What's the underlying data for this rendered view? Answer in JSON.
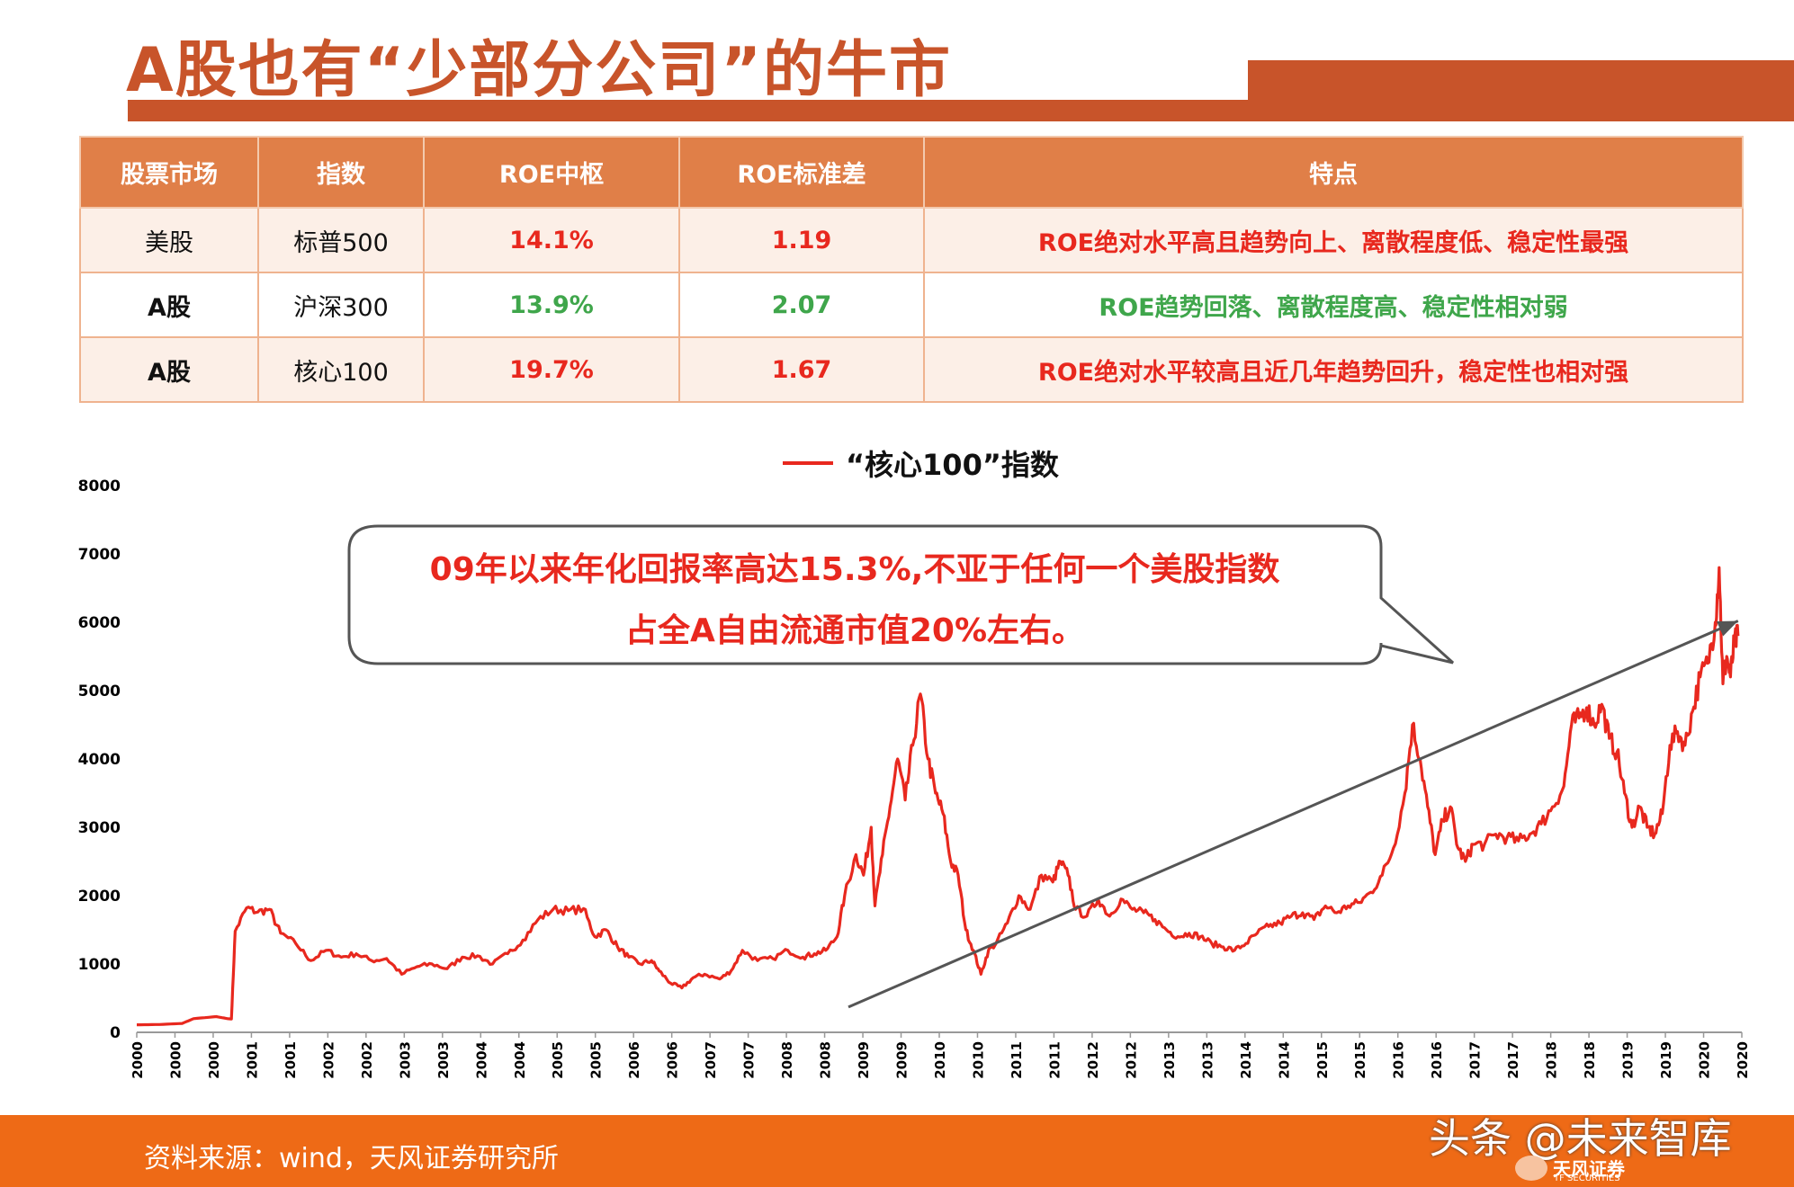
{
  "header": {
    "title": "A股也有“少部分公司”的牛市"
  },
  "table": {
    "headers": [
      "股票市场",
      "指数",
      "ROE中枢",
      "ROE标准差",
      "特点"
    ],
    "rows": [
      {
        "market": "美股",
        "index": "标普500",
        "roe": "14.1%",
        "std": "1.19",
        "feature": "ROE绝对水平高且趋势向上、离散程度低、稳定性最强"
      },
      {
        "market": "A股",
        "index": "沪深300",
        "roe": "13.9%",
        "std": "2.07",
        "feature": "ROE趋势回落、离散程度高、稳定性相对弱"
      },
      {
        "market": "A股",
        "index": "核心100",
        "roe": "19.7%",
        "std": "1.67",
        "feature": "ROE绝对水平较高且近几年趋势回升，稳定性也相对强"
      }
    ]
  },
  "callout": {
    "line1": "09年以来年化回报率高达15.3%,不亚于任何一个美股指数",
    "line2": "占全A自由流通市值20%左右。"
  },
  "footer": {
    "source": "资料来源：wind，天风证券研究所",
    "watermark": "头条 @未来智库",
    "logo_text": "天风证券",
    "logo_sub": "TF SECURITIES"
  },
  "colors": {
    "accent": "#c8542a",
    "header_fill": "#e07f48",
    "series": "#e8281e",
    "green": "#3fa64b",
    "footer": "#ee6a16",
    "trend": "#555555"
  },
  "chart_data": {
    "type": "line",
    "series": [
      {
        "name": "“核心100”指数",
        "color": "#e8281e"
      }
    ],
    "ylim": [
      0,
      8000
    ],
    "yticks": [
      0,
      1000,
      2000,
      3000,
      4000,
      5000,
      6000,
      7000,
      8000
    ],
    "xticks": [
      "2000",
      "2000",
      "2000",
      "2001",
      "2001",
      "2002",
      "2002",
      "2003",
      "2003",
      "2004",
      "2004",
      "2005",
      "2005",
      "2006",
      "2006",
      "2007",
      "2007",
      "2008",
      "2008",
      "2009",
      "2009",
      "2010",
      "2010",
      "2011",
      "2011",
      "2012",
      "2012",
      "2013",
      "2013",
      "2014",
      "2014",
      "2015",
      "2015",
      "2016",
      "2016",
      "2017",
      "2017",
      "2018",
      "2018",
      "2019",
      "2019",
      "2020",
      "2020"
    ],
    "xlim": [
      2000.0,
      2020.3
    ],
    "points": [
      [
        2000.0,
        110
      ],
      [
        2000.3,
        115
      ],
      [
        2000.6,
        130
      ],
      [
        2000.75,
        200
      ],
      [
        2001.05,
        230
      ],
      [
        2001.2,
        200
      ],
      [
        2001.25,
        195
      ],
      [
        2001.3,
        1480
      ],
      [
        2001.45,
        1820
      ],
      [
        2001.6,
        1760
      ],
      [
        2001.75,
        1800
      ],
      [
        2001.9,
        1450
      ],
      [
        2002.1,
        1300
      ],
      [
        2002.3,
        1050
      ],
      [
        2002.5,
        1200
      ],
      [
        2002.7,
        1100
      ],
      [
        2002.9,
        1150
      ],
      [
        2003.1,
        1050
      ],
      [
        2003.3,
        1080
      ],
      [
        2003.5,
        850
      ],
      [
        2003.7,
        960
      ],
      [
        2003.9,
        1000
      ],
      [
        2004.1,
        930
      ],
      [
        2004.3,
        1100
      ],
      [
        2004.5,
        1120
      ],
      [
        2004.7,
        1000
      ],
      [
        2004.9,
        1150
      ],
      [
        2005.1,
        1350
      ],
      [
        2005.3,
        1650
      ],
      [
        2005.5,
        1800
      ],
      [
        2005.7,
        1780
      ],
      [
        2005.9,
        1810
      ],
      [
        2006.05,
        1400
      ],
      [
        2006.2,
        1500
      ],
      [
        2006.35,
        1250
      ],
      [
        2006.5,
        1100
      ],
      [
        2006.65,
        1000
      ],
      [
        2006.8,
        1050
      ],
      [
        2006.9,
        900
      ],
      [
        2007.05,
        720
      ],
      [
        2007.2,
        650
      ],
      [
        2007.35,
        800
      ],
      [
        2007.5,
        850
      ],
      [
        2007.7,
        780
      ],
      [
        2007.85,
        900
      ],
      [
        2008.0,
        1200
      ],
      [
        2008.2,
        1050
      ],
      [
        2008.4,
        1080
      ],
      [
        2008.6,
        1200
      ],
      [
        2008.8,
        1100
      ],
      [
        2008.95,
        1150
      ],
      [
        2009.1,
        1200
      ],
      [
        2009.25,
        1400
      ],
      [
        2009.35,
        2000
      ],
      [
        2009.5,
        2600
      ],
      [
        2009.6,
        2300
      ],
      [
        2009.7,
        3000
      ],
      [
        2009.75,
        1850
      ],
      [
        2009.85,
        2600
      ],
      [
        2009.95,
        3300
      ],
      [
        2010.05,
        4000
      ],
      [
        2010.15,
        3400
      ],
      [
        2010.25,
        4200
      ],
      [
        2010.35,
        4950
      ],
      [
        2010.45,
        4000
      ],
      [
        2010.55,
        3500
      ],
      [
        2010.65,
        3200
      ],
      [
        2010.75,
        2500
      ],
      [
        2010.85,
        2300
      ],
      [
        2010.95,
        1500
      ],
      [
        2011.05,
        1200
      ],
      [
        2011.15,
        850
      ],
      [
        2011.25,
        1200
      ],
      [
        2011.35,
        1300
      ],
      [
        2011.5,
        1600
      ],
      [
        2011.65,
        2000
      ],
      [
        2011.8,
        1800
      ],
      [
        2011.95,
        2300
      ],
      [
        2012.1,
        2200
      ],
      [
        2012.2,
        2500
      ],
      [
        2012.3,
        2300
      ],
      [
        2012.4,
        1800
      ],
      [
        2012.55,
        1700
      ],
      [
        2012.7,
        1950
      ],
      [
        2012.85,
        1700
      ],
      [
        2013.0,
        1950
      ],
      [
        2013.15,
        1800
      ],
      [
        2013.3,
        1750
      ],
      [
        2013.45,
        1650
      ],
      [
        2013.6,
        1500
      ],
      [
        2013.75,
        1400
      ],
      [
        2013.9,
        1450
      ],
      [
        2014.05,
        1400
      ],
      [
        2014.2,
        1300
      ],
      [
        2014.35,
        1250
      ],
      [
        2014.5,
        1200
      ],
      [
        2014.65,
        1300
      ],
      [
        2014.8,
        1450
      ],
      [
        2014.95,
        1550
      ],
      [
        2015.1,
        1600
      ],
      [
        2015.25,
        1700
      ],
      [
        2015.4,
        1750
      ],
      [
        2015.55,
        1650
      ],
      [
        2015.7,
        1850
      ],
      [
        2015.85,
        1750
      ],
      [
        2016.0,
        1850
      ],
      [
        2016.15,
        1900
      ],
      [
        2016.3,
        2050
      ],
      [
        2016.45,
        2300
      ],
      [
        2016.6,
        2700
      ],
      [
        2016.75,
        3500
      ],
      [
        2016.85,
        4500
      ],
      [
        2016.95,
        4000
      ],
      [
        2017.05,
        3300
      ],
      [
        2017.15,
        2600
      ],
      [
        2017.25,
        3100
      ],
      [
        2017.35,
        3300
      ],
      [
        2017.45,
        2700
      ],
      [
        2017.55,
        2500
      ],
      [
        2017.65,
        2750
      ],
      [
        2017.8,
        2750
      ],
      [
        2017.95,
        2900
      ],
      [
        2018.1,
        2850
      ],
      [
        2018.25,
        2800
      ],
      [
        2018.4,
        2900
      ],
      [
        2018.55,
        3050
      ],
      [
        2018.7,
        3300
      ],
      [
        2018.85,
        3600
      ],
      [
        2018.95,
        4500
      ],
      [
        2019.05,
        4600
      ],
      [
        2019.15,
        4750
      ],
      [
        2019.25,
        4500
      ],
      [
        2019.35,
        4800
      ],
      [
        2019.45,
        4300
      ],
      [
        2019.55,
        4100
      ],
      [
        2019.65,
        3500
      ],
      [
        2019.75,
        3000
      ],
      [
        2019.85,
        3300
      ],
      [
        2019.95,
        3000
      ],
      [
        2020.05,
        2900
      ],
      [
        2020.15,
        3200
      ],
      [
        2020.25,
        4200
      ],
      [
        2020.35,
        4400
      ],
      [
        2020.45,
        4200
      ],
      [
        2020.55,
        4700
      ],
      [
        2020.65,
        5200
      ],
      [
        2020.75,
        5400
      ],
      [
        2020.85,
        6000
      ],
      [
        2020.9,
        6800
      ],
      [
        2020.95,
        5100
      ],
      [
        2021.0,
        5500
      ],
      [
        2021.05,
        5200
      ],
      [
        2021.1,
        5700
      ],
      [
        2021.15,
        5800
      ]
    ],
    "trendline": {
      "x": [
        2009.4,
        2021.15
      ],
      "y": [
        370,
        6020
      ]
    }
  }
}
